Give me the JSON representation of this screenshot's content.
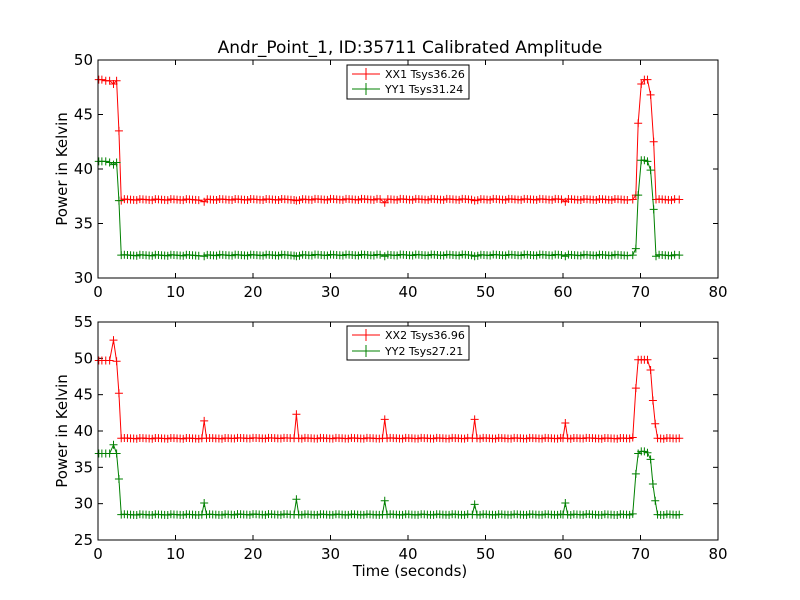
{
  "chart_data": [
    {
      "type": "line",
      "title": "Andr_Point_1, ID:35711 Calibrated Amplitude",
      "xlabel": "",
      "ylabel": "Power in Kelvin",
      "xlim": [
        0,
        80
      ],
      "ylim": [
        30,
        50
      ],
      "xticks": [
        "0",
        "10",
        "20",
        "30",
        "40",
        "50",
        "60",
        "70",
        "80"
      ],
      "yticks": [
        "30",
        "35",
        "40",
        "45",
        "50"
      ],
      "grid": false,
      "legend_position": "top-center",
      "series": [
        {
          "name": "XX1 Tsys36.26",
          "color": "#ff0000",
          "baseline": 37.2,
          "points": [
            [
              0.1,
              48.2
            ],
            [
              0.5,
              48.2
            ],
            [
              1.0,
              48.1
            ],
            [
              1.5,
              48.1
            ],
            [
              2.0,
              47.8
            ],
            [
              2.4,
              48.1
            ],
            [
              2.7,
              43.5
            ],
            [
              3.0,
              37.1
            ],
            [
              13.7,
              37.0
            ],
            [
              25.6,
              37.1
            ],
            [
              37.0,
              36.9
            ],
            [
              48.6,
              37.1
            ],
            [
              60.3,
              37.0
            ],
            [
              69.0,
              37.2
            ],
            [
              69.4,
              37.6
            ],
            [
              69.7,
              44.2
            ],
            [
              70.1,
              47.8
            ],
            [
              70.5,
              48.2
            ],
            [
              70.9,
              48.2
            ],
            [
              71.3,
              46.8
            ],
            [
              71.7,
              42.5
            ],
            [
              72.0,
              37.2
            ],
            [
              75.0,
              37.2
            ]
          ]
        },
        {
          "name": "YY1 Tsys31.24",
          "color": "#008000",
          "baseline": 32.1,
          "points": [
            [
              0.1,
              40.7
            ],
            [
              0.5,
              40.7
            ],
            [
              1.0,
              40.7
            ],
            [
              1.5,
              40.6
            ],
            [
              2.0,
              40.4
            ],
            [
              2.4,
              40.6
            ],
            [
              2.7,
              37.1
            ],
            [
              3.0,
              32.1
            ],
            [
              13.7,
              32.0
            ],
            [
              25.6,
              32.0
            ],
            [
              37.0,
              32.0
            ],
            [
              48.6,
              32.0
            ],
            [
              60.3,
              32.0
            ],
            [
              69.0,
              32.1
            ],
            [
              69.4,
              32.7
            ],
            [
              69.7,
              37.6
            ],
            [
              70.1,
              40.8
            ],
            [
              70.5,
              40.8
            ],
            [
              70.9,
              40.7
            ],
            [
              71.3,
              39.9
            ],
            [
              71.7,
              36.3
            ],
            [
              72.0,
              32.0
            ],
            [
              75.0,
              32.1
            ]
          ]
        }
      ]
    },
    {
      "type": "line",
      "title": "",
      "xlabel": "Time (seconds)",
      "ylabel": "Power in Kelvin",
      "xlim": [
        0,
        80
      ],
      "ylim": [
        25,
        55
      ],
      "xticks": [
        "0",
        "10",
        "20",
        "30",
        "40",
        "50",
        "60",
        "70",
        "80"
      ],
      "yticks": [
        "25",
        "30",
        "35",
        "40",
        "45",
        "50",
        "55"
      ],
      "grid": false,
      "legend_position": "top-center",
      "series": [
        {
          "name": "XX2 Tsys36.96",
          "color": "#ff0000",
          "baseline": 39.0,
          "points": [
            [
              0.1,
              49.7
            ],
            [
              0.5,
              49.7
            ],
            [
              1.0,
              49.7
            ],
            [
              1.5,
              49.7
            ],
            [
              2.0,
              52.5
            ],
            [
              2.4,
              49.6
            ],
            [
              2.7,
              45.2
            ],
            [
              3.0,
              39.0
            ],
            [
              13.4,
              39.0
            ],
            [
              13.7,
              41.4
            ],
            [
              14.0,
              39.0
            ],
            [
              25.3,
              39.0
            ],
            [
              25.6,
              42.3
            ],
            [
              25.9,
              39.0
            ],
            [
              36.7,
              39.0
            ],
            [
              37.0,
              41.6
            ],
            [
              37.3,
              39.0
            ],
            [
              48.3,
              39.0
            ],
            [
              48.6,
              41.6
            ],
            [
              48.9,
              39.0
            ],
            [
              60.0,
              39.0
            ],
            [
              60.3,
              41.1
            ],
            [
              60.6,
              39.0
            ],
            [
              69.0,
              39.1
            ],
            [
              69.4,
              45.9
            ],
            [
              69.7,
              49.8
            ],
            [
              70.1,
              49.8
            ],
            [
              70.5,
              49.8
            ],
            [
              70.9,
              49.8
            ],
            [
              71.3,
              48.4
            ],
            [
              71.6,
              44.2
            ],
            [
              71.9,
              41.0
            ],
            [
              72.2,
              39.0
            ],
            [
              75.0,
              39.0
            ]
          ]
        },
        {
          "name": "YY2 Tsys27.21",
          "color": "#008000",
          "baseline": 28.5,
          "points": [
            [
              0.1,
              36.9
            ],
            [
              0.5,
              36.9
            ],
            [
              1.0,
              36.9
            ],
            [
              1.5,
              36.9
            ],
            [
              2.0,
              38.1
            ],
            [
              2.4,
              36.9
            ],
            [
              2.7,
              33.4
            ],
            [
              3.0,
              28.5
            ],
            [
              13.4,
              28.5
            ],
            [
              13.7,
              30.1
            ],
            [
              14.0,
              28.5
            ],
            [
              25.3,
              28.5
            ],
            [
              25.6,
              30.6
            ],
            [
              25.9,
              28.5
            ],
            [
              36.7,
              28.5
            ],
            [
              37.0,
              30.4
            ],
            [
              37.3,
              28.5
            ],
            [
              48.3,
              28.5
            ],
            [
              48.6,
              29.9
            ],
            [
              48.9,
              28.5
            ],
            [
              60.0,
              28.5
            ],
            [
              60.3,
              30.1
            ],
            [
              60.6,
              28.5
            ],
            [
              69.0,
              28.6
            ],
            [
              69.4,
              34.1
            ],
            [
              69.7,
              36.9
            ],
            [
              70.1,
              37.2
            ],
            [
              70.5,
              37.2
            ],
            [
              70.9,
              37.0
            ],
            [
              71.3,
              36.1
            ],
            [
              71.6,
              32.7
            ],
            [
              71.9,
              30.4
            ],
            [
              72.2,
              28.5
            ],
            [
              75.0,
              28.5
            ]
          ]
        }
      ]
    }
  ]
}
